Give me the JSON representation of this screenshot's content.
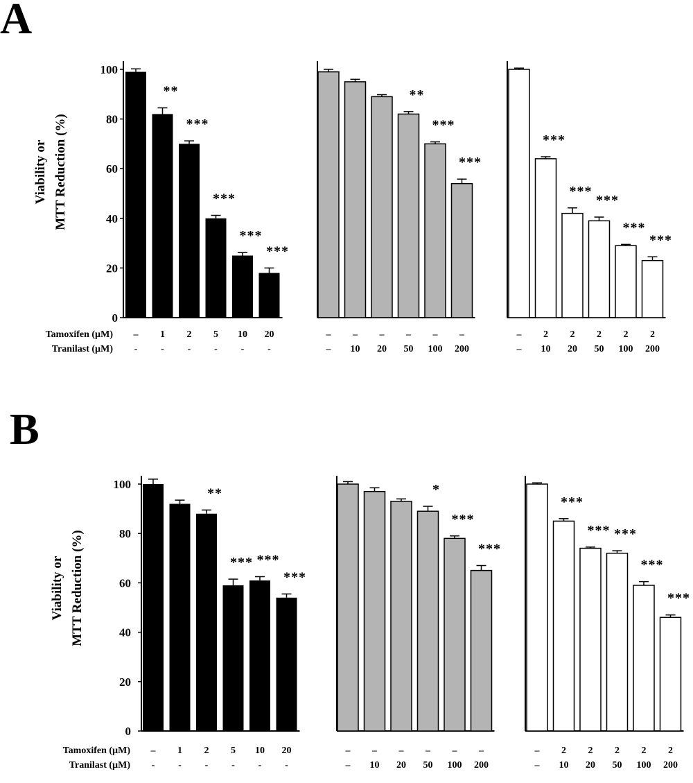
{
  "chart_data": [
    {
      "panel": "A",
      "type": "bar",
      "ylabel_lines": [
        "Viability or",
        "MTT Reduction (%)"
      ],
      "ylim": [
        0,
        100
      ],
      "yticks": [
        0,
        20,
        40,
        60,
        80,
        100
      ],
      "row_labels": [
        "Tamoxifen (µM)",
        "Tranilast (µM)"
      ],
      "groups": [
        {
          "color": "#000000",
          "values": [
            99,
            82,
            70,
            40,
            25,
            18
          ],
          "errors": [
            1.2,
            2.5,
            1.2,
            1.2,
            1.2,
            2
          ],
          "significance": [
            "",
            "**",
            "***",
            "***",
            "***",
            "***"
          ],
          "tamoxifen": [
            "–",
            "1",
            "2",
            "5",
            "10",
            "20"
          ],
          "tranilast": [
            "-",
            "-",
            "-",
            "-",
            "-",
            "-"
          ]
        },
        {
          "color": "#b4b4b4",
          "values": [
            99,
            95,
            89,
            82,
            70,
            54
          ],
          "errors": [
            1,
            1,
            0.8,
            1,
            0.8,
            1.8
          ],
          "significance": [
            "",
            "",
            "",
            "**",
            "***",
            "***"
          ],
          "tamoxifen": [
            "–",
            "–",
            "–",
            "–",
            "–",
            "–"
          ],
          "tranilast": [
            "–",
            "10",
            "20",
            "50",
            "100",
            "200"
          ]
        },
        {
          "color": "#ffffff",
          "values": [
            100,
            64,
            42,
            39,
            29,
            23
          ],
          "errors": [
            0.5,
            0.8,
            2.2,
            1.5,
            0.5,
            1.5
          ],
          "significance": [
            "",
            "***",
            "***",
            "***",
            "***",
            "***"
          ],
          "tamoxifen": [
            "–",
            "2",
            "2",
            "2",
            "2",
            "2"
          ],
          "tranilast": [
            "–",
            "10",
            "20",
            "50",
            "100",
            "200"
          ]
        }
      ]
    },
    {
      "panel": "B",
      "type": "bar",
      "ylabel_lines": [
        "Viability or",
        "MTT Reduction (%)"
      ],
      "ylim": [
        0,
        100
      ],
      "yticks": [
        0,
        20,
        40,
        60,
        80,
        100
      ],
      "row_labels": [
        "Tamoxifen (µM)",
        "Tranilast (µM)"
      ],
      "groups": [
        {
          "color": "#000000",
          "values": [
            100,
            92,
            88,
            59,
            61,
            54
          ],
          "errors": [
            2,
            1.5,
            1.5,
            2.5,
            1.5,
            1.5
          ],
          "significance": [
            "",
            "",
            "**",
            "***",
            "***",
            "***"
          ],
          "tamoxifen": [
            "–",
            "1",
            "2",
            "5",
            "10",
            "20"
          ],
          "tranilast": [
            "-",
            "-",
            "-",
            "-",
            "-",
            "-"
          ]
        },
        {
          "color": "#b4b4b4",
          "values": [
            100,
            97,
            93,
            89,
            78,
            65
          ],
          "errors": [
            1,
            1.5,
            1,
            2,
            1,
            2
          ],
          "significance": [
            "",
            "",
            "",
            "*",
            "***",
            "***"
          ],
          "tamoxifen": [
            "–",
            "–",
            "–",
            "–",
            "–",
            "–"
          ],
          "tranilast": [
            "–",
            "10",
            "20",
            "50",
            "100",
            "200"
          ]
        },
        {
          "color": "#ffffff",
          "values": [
            100,
            85,
            74,
            72,
            59,
            46
          ],
          "errors": [
            0.5,
            1,
            0.5,
            1,
            1.5,
            1
          ],
          "significance": [
            "",
            "***",
            "***",
            "***",
            "***",
            "***"
          ],
          "tamoxifen": [
            "–",
            "2",
            "2",
            "2",
            "2",
            "2"
          ],
          "tranilast": [
            "–",
            "10",
            "20",
            "50",
            "100",
            "200"
          ]
        }
      ]
    }
  ]
}
